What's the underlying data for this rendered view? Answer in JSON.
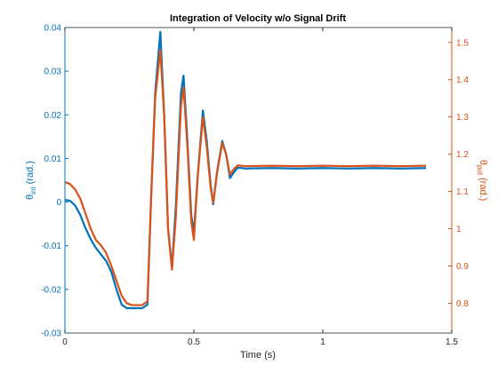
{
  "chart_data": {
    "type": "line",
    "title": "Integration of Velocity w/o Signal Drift",
    "xlabel": "Time (s)",
    "ylabel_left": {
      "symbol": "θ",
      "sub": "int",
      "unit": " (rad.)"
    },
    "ylabel_right": {
      "symbol": "θ",
      "sub": "pot",
      "unit": " (rad.)"
    },
    "xlim": [
      0,
      1.5
    ],
    "ylim_left": [
      -0.03,
      0.04
    ],
    "ylim_right": [
      0.72,
      1.54
    ],
    "xticks": [
      0,
      0.5,
      1,
      1.5
    ],
    "xtick_labels": [
      "0",
      "0.5",
      "1",
      "1.5"
    ],
    "yticks_left": [
      -0.03,
      -0.02,
      -0.01,
      0,
      0.01,
      0.02,
      0.03,
      0.04
    ],
    "ytick_labels_left": [
      "-0.03",
      "-0.02",
      "-0.01",
      "0",
      "0.01",
      "0.02",
      "0.03",
      "0.04"
    ],
    "yticks_right": [
      0.8,
      0.9,
      1.0,
      1.1,
      1.2,
      1.3,
      1.4,
      1.5
    ],
    "ytick_labels_right": [
      "0.8",
      "0.9",
      "1",
      "1.1",
      "1.2",
      "1.3",
      "1.4",
      "1.5"
    ],
    "grid": false,
    "legend": "none",
    "series": [
      {
        "axis": "left",
        "color": "#0072BD",
        "points": [
          [
            0,
            0.0005
          ],
          [
            0.02,
            0.0003
          ],
          [
            0.04,
            -0.0008
          ],
          [
            0.06,
            -0.003
          ],
          [
            0.08,
            -0.006
          ],
          [
            0.1,
            -0.0085
          ],
          [
            0.12,
            -0.0105
          ],
          [
            0.14,
            -0.012
          ],
          [
            0.16,
            -0.0135
          ],
          [
            0.18,
            -0.016
          ],
          [
            0.2,
            -0.02
          ],
          [
            0.22,
            -0.0235
          ],
          [
            0.24,
            -0.0243
          ],
          [
            0.26,
            -0.0243
          ],
          [
            0.28,
            -0.0243
          ],
          [
            0.3,
            -0.0243
          ],
          [
            0.32,
            -0.0235
          ],
          [
            0.335,
            0.002
          ],
          [
            0.35,
            0.025
          ],
          [
            0.37,
            0.039
          ],
          [
            0.385,
            0.02
          ],
          [
            0.4,
            -0.006
          ],
          [
            0.415,
            -0.015
          ],
          [
            0.43,
            -0.001
          ],
          [
            0.45,
            0.025
          ],
          [
            0.46,
            0.029
          ],
          [
            0.475,
            0.014
          ],
          [
            0.49,
            -0.003
          ],
          [
            0.5,
            -0.007
          ],
          [
            0.515,
            0.006
          ],
          [
            0.535,
            0.021
          ],
          [
            0.55,
            0.014
          ],
          [
            0.565,
            0.004
          ],
          [
            0.575,
            -0.0005
          ],
          [
            0.59,
            0.007
          ],
          [
            0.61,
            0.014
          ],
          [
            0.625,
            0.011
          ],
          [
            0.64,
            0.0055
          ],
          [
            0.655,
            0.0068
          ],
          [
            0.67,
            0.0079
          ],
          [
            0.7,
            0.0077
          ],
          [
            0.8,
            0.0078
          ],
          [
            0.9,
            0.0077
          ],
          [
            1.0,
            0.0078
          ],
          [
            1.1,
            0.0077
          ],
          [
            1.2,
            0.0078
          ],
          [
            1.3,
            0.0077
          ],
          [
            1.4,
            0.0078
          ]
        ]
      },
      {
        "axis": "right",
        "color": "#D95319",
        "points": [
          [
            0,
            1.125
          ],
          [
            0.02,
            1.12
          ],
          [
            0.04,
            1.105
          ],
          [
            0.06,
            1.08
          ],
          [
            0.08,
            1.04
          ],
          [
            0.1,
            1.0
          ],
          [
            0.12,
            0.97
          ],
          [
            0.14,
            0.955
          ],
          [
            0.16,
            0.935
          ],
          [
            0.18,
            0.9
          ],
          [
            0.2,
            0.86
          ],
          [
            0.22,
            0.82
          ],
          [
            0.24,
            0.8
          ],
          [
            0.26,
            0.795
          ],
          [
            0.28,
            0.795
          ],
          [
            0.3,
            0.795
          ],
          [
            0.32,
            0.805
          ],
          [
            0.335,
            1.1
          ],
          [
            0.35,
            1.35
          ],
          [
            0.37,
            1.48
          ],
          [
            0.385,
            1.3
          ],
          [
            0.4,
            1.0
          ],
          [
            0.415,
            0.89
          ],
          [
            0.43,
            1.03
          ],
          [
            0.45,
            1.33
          ],
          [
            0.46,
            1.38
          ],
          [
            0.475,
            1.22
          ],
          [
            0.49,
            1.02
          ],
          [
            0.5,
            0.97
          ],
          [
            0.515,
            1.14
          ],
          [
            0.535,
            1.3
          ],
          [
            0.55,
            1.22
          ],
          [
            0.565,
            1.11
          ],
          [
            0.575,
            1.07
          ],
          [
            0.59,
            1.15
          ],
          [
            0.61,
            1.23
          ],
          [
            0.625,
            1.2
          ],
          [
            0.64,
            1.145
          ],
          [
            0.655,
            1.16
          ],
          [
            0.67,
            1.17
          ],
          [
            0.7,
            1.168
          ],
          [
            0.8,
            1.169
          ],
          [
            0.9,
            1.168
          ],
          [
            1.0,
            1.169
          ],
          [
            1.1,
            1.168
          ],
          [
            1.2,
            1.169
          ],
          [
            1.3,
            1.168
          ],
          [
            1.4,
            1.169
          ]
        ]
      }
    ]
  }
}
